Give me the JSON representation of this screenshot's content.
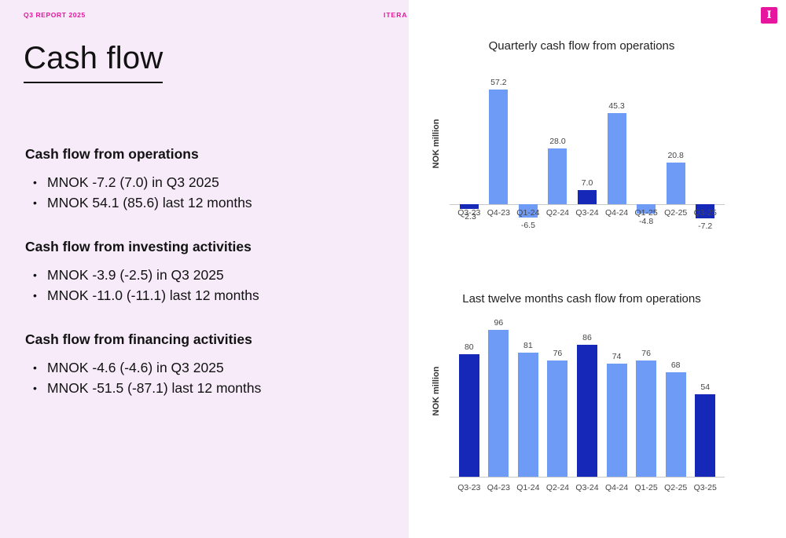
{
  "header": {
    "report_label": "Q3 REPORT 2025",
    "brand_label": "ITERA"
  },
  "title": "Cash flow",
  "sections": [
    {
      "heading": "Cash flow from operations",
      "bullets": [
        "MNOK -7.2 (7.0) in Q3 2025",
        "MNOK 54.1 (85.6) last 12 months"
      ]
    },
    {
      "heading": "Cash flow from investing activities",
      "bullets": [
        "MNOK -3.9 (-2.5) in Q3 2025",
        "MNOK -11.0 (-11.1) last 12 months"
      ]
    },
    {
      "heading": "Cash flow from financing activities",
      "bullets": [
        "MNOK -4.6 (-4.6) in Q3 2025",
        "MNOK -51.5 (-87.1) last 12 months"
      ]
    }
  ],
  "logo": {
    "letter": "I"
  },
  "colors": {
    "accent_magenta": "#e6169e",
    "left_panel_bg": "#f7ebfa",
    "bar_light_blue": "#6e9bf6",
    "bar_dark_blue": "#1528b8",
    "axis_gray": "#c8c8c8",
    "label_gray": "#454545",
    "text_dark": "#121212"
  },
  "chart_data": [
    {
      "type": "bar",
      "title": "Quarterly cash flow from operations",
      "xlabel": "",
      "ylabel": "NOK million",
      "categories": [
        "Q3-23",
        "Q4-23",
        "Q1-24",
        "Q2-24",
        "Q3-24",
        "Q4-24",
        "Q1-25",
        "Q2-25",
        "Q3-25"
      ],
      "values": [
        -2.3,
        57.2,
        -6.5,
        28.0,
        7.0,
        45.3,
        -4.8,
        20.8,
        -7.2
      ],
      "labels": [
        "-2.3",
        "57.2",
        "-6.5",
        "28.0",
        "7.0",
        "45.3",
        "-4.8",
        "20.8",
        "-7.2"
      ],
      "highlight_indices": [
        0,
        4,
        8
      ],
      "ylim": [
        -10,
        60
      ],
      "grid": false,
      "legend": "none"
    },
    {
      "type": "bar",
      "title": "Last twelve months cash flow from operations",
      "xlabel": "",
      "ylabel": "NOK million",
      "categories": [
        "Q3-23",
        "Q4-23",
        "Q1-24",
        "Q2-24",
        "Q3-24",
        "Q4-24",
        "Q1-25",
        "Q2-25",
        "Q3-25"
      ],
      "values": [
        80,
        96,
        81,
        76,
        86,
        74,
        76,
        68,
        54
      ],
      "labels": [
        "80",
        "96",
        "81",
        "76",
        "86",
        "74",
        "76",
        "68",
        "54"
      ],
      "highlight_indices": [
        0,
        4,
        8
      ],
      "ylim": [
        0,
        100
      ],
      "grid": false,
      "legend": "none"
    }
  ]
}
